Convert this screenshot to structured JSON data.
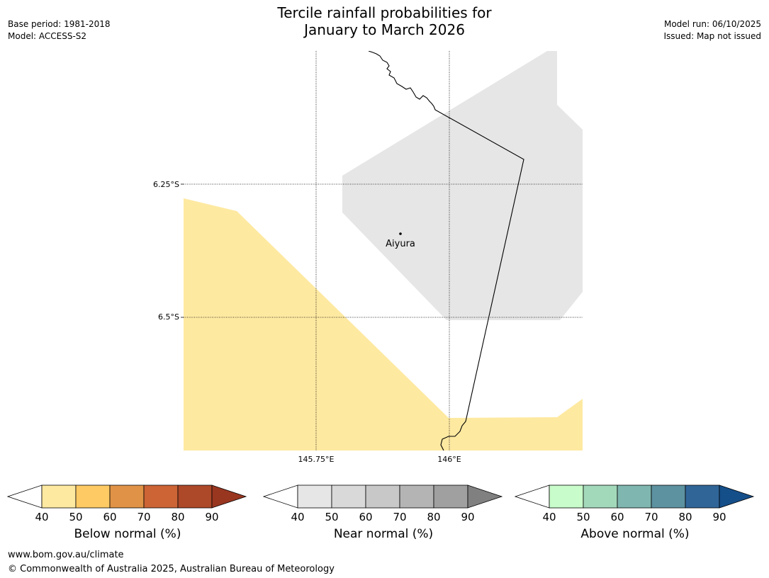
{
  "header": {
    "title_line1": "Tercile rainfall probabilities for",
    "title_line2": "January to March 2026",
    "base_period": "Base period: 1981-2018",
    "model": "Model: ACCESS-S2",
    "model_run": "Model run: 06/10/2025",
    "issued": "Issued: Map not issued"
  },
  "map": {
    "lat_labels": [
      "6.25°S",
      "6.5°S"
    ],
    "lon_labels": [
      "145.75°E",
      "146°E"
    ],
    "place": {
      "name": "Aiyura"
    },
    "colors": {
      "below_normal_50": "#fee9a1",
      "near_normal_50": "#e6e6e6",
      "border": "#000000"
    }
  },
  "colorbars": [
    {
      "label": "Below normal (%)",
      "ticks": [
        "40",
        "50",
        "60",
        "70",
        "80",
        "90"
      ],
      "colors": [
        "#ffffff",
        "#fee9a1",
        "#feca64",
        "#e09346",
        "#cc6436",
        "#ad4828",
        "#993620"
      ]
    },
    {
      "label": "Near normal (%)",
      "ticks": [
        "40",
        "50",
        "60",
        "70",
        "80",
        "90"
      ],
      "colors": [
        "#ffffff",
        "#e6e6e6",
        "#d9d9d9",
        "#c8c8c8",
        "#b4b4b4",
        "#a0a0a0",
        "#808080"
      ]
    },
    {
      "label": "Above normal (%)",
      "ticks": [
        "40",
        "50",
        "60",
        "70",
        "80",
        "90"
      ],
      "colors": [
        "#ffffff",
        "#c8fcca",
        "#a3d9bb",
        "#7fb7b0",
        "#5d92a0",
        "#306598",
        "#154f8a"
      ]
    }
  ],
  "footer": {
    "url": "www.bom.gov.au/climate",
    "copyright": "© Commonwealth of Australia 2025, Australian Bureau of Meteorology"
  }
}
